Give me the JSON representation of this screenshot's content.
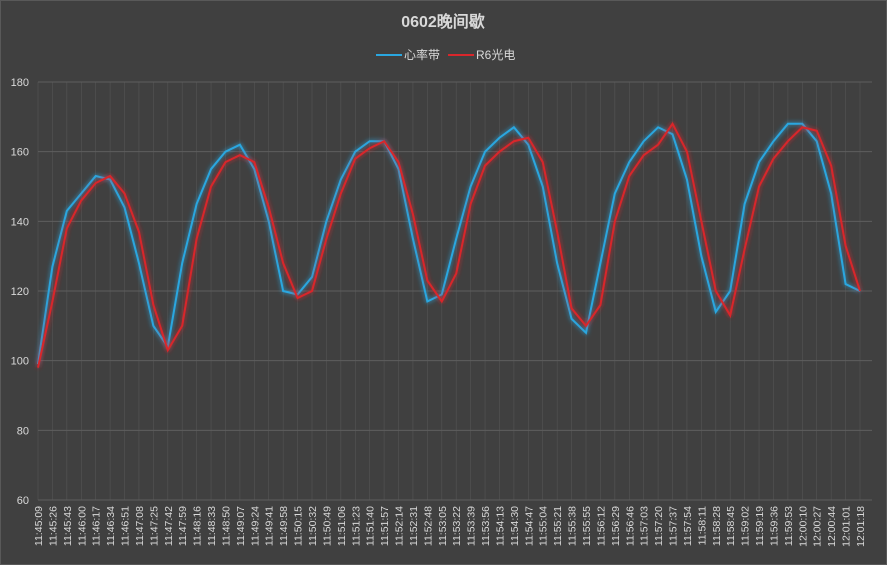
{
  "chart_data": {
    "type": "line",
    "title": "0602晚间歇",
    "categories": [
      "11:45:09",
      "11:45:26",
      "11:45:43",
      "11:46:00",
      "11:46:17",
      "11:46:34",
      "11:46:51",
      "11:47:08",
      "11:47:25",
      "11:47:42",
      "11:47:59",
      "11:48:16",
      "11:48:33",
      "11:48:50",
      "11:49:07",
      "11:49:24",
      "11:49:41",
      "11:49:58",
      "11:50:15",
      "11:50:32",
      "11:50:49",
      "11:51:06",
      "11:51:23",
      "11:51:40",
      "11:51:57",
      "11:52:14",
      "11:52:31",
      "11:52:48",
      "11:53:05",
      "11:53:22",
      "11:53:39",
      "11:53:56",
      "11:54:13",
      "11:54:30",
      "11:54:47",
      "11:55:04",
      "11:55:21",
      "11:55:38",
      "11:55:55",
      "11:56:12",
      "11:56:29",
      "11:56:46",
      "11:57:03",
      "11:57:20",
      "11:57:37",
      "11:57:54",
      "11:58:11",
      "11:58:28",
      "11:58:45",
      "11:59:02",
      "11:59:19",
      "11:59:36",
      "11:59:53",
      "12:00:10",
      "12:00:27",
      "12:00:44",
      "12:01:01",
      "12:01:18"
    ],
    "series": [
      {
        "name": "心率带",
        "color": "#2aa7e0",
        "values": [
          99,
          127,
          143,
          148,
          153,
          152,
          144,
          128,
          110,
          104,
          128,
          145,
          155,
          160,
          162,
          155,
          140,
          120,
          119,
          124,
          140,
          152,
          160,
          163,
          163,
          155,
          135,
          117,
          119,
          135,
          150,
          160,
          164,
          167,
          162,
          150,
          128,
          112,
          108,
          128,
          148,
          157,
          163,
          167,
          165,
          152,
          130,
          114,
          120,
          145,
          157,
          163,
          168,
          168,
          163,
          148,
          122,
          120
        ]
      },
      {
        "name": "R6光电",
        "color": "#d9262b",
        "values": [
          98,
          117,
          138,
          146,
          151,
          153,
          148,
          137,
          116,
          103,
          110,
          135,
          150,
          157,
          159,
          157,
          144,
          128,
          118,
          120,
          135,
          148,
          158,
          161,
          163,
          157,
          142,
          123,
          117,
          125,
          145,
          156,
          160,
          163,
          164,
          157,
          137,
          115,
          110,
          116,
          140,
          153,
          159,
          162,
          168,
          160,
          140,
          120,
          113,
          132,
          150,
          158,
          163,
          167,
          166,
          156,
          133,
          120
        ]
      }
    ],
    "ylim": [
      60,
      180
    ],
    "yticks": [
      60,
      80,
      100,
      120,
      140,
      160,
      180
    ],
    "grid": true,
    "legend": "top"
  }
}
